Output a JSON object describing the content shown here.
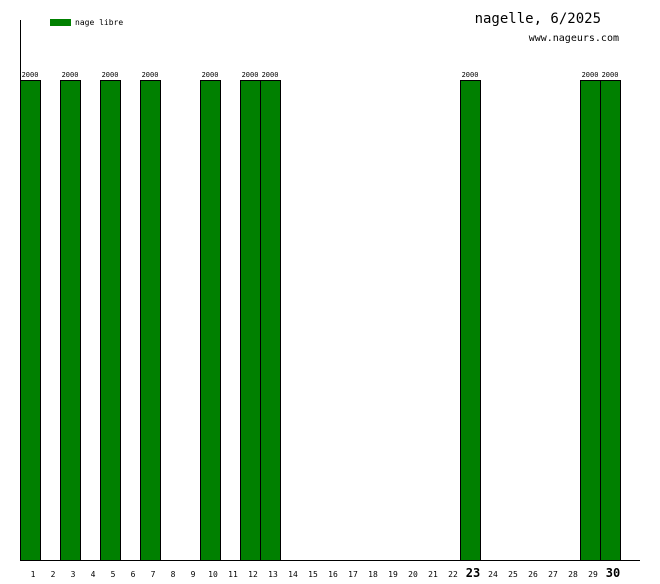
{
  "chart_data": {
    "type": "bar",
    "title": "nagelle, 6/2025",
    "subtitle": "www.nageurs.com",
    "legend": {
      "label": "nage libre",
      "placement": "top-left"
    },
    "categories": [
      "1",
      "2",
      "3",
      "4",
      "5",
      "6",
      "7",
      "8",
      "9",
      "10",
      "11",
      "12",
      "13",
      "14",
      "15",
      "16",
      "17",
      "18",
      "19",
      "20",
      "21",
      "22",
      "23",
      "24",
      "25",
      "26",
      "27",
      "28",
      "29",
      "30"
    ],
    "series": [
      {
        "name": "nage libre",
        "color": "#008000",
        "values": [
          2000,
          0,
          2000,
          0,
          2000,
          0,
          2000,
          0,
          0,
          2000,
          0,
          2000,
          2000,
          0,
          0,
          0,
          0,
          0,
          0,
          0,
          0,
          0,
          2000,
          0,
          0,
          0,
          0,
          0,
          2000,
          2000
        ]
      }
    ],
    "highlighted_categories": [
      "23",
      "30"
    ],
    "ylim": [
      0,
      2000
    ],
    "grid": false
  }
}
